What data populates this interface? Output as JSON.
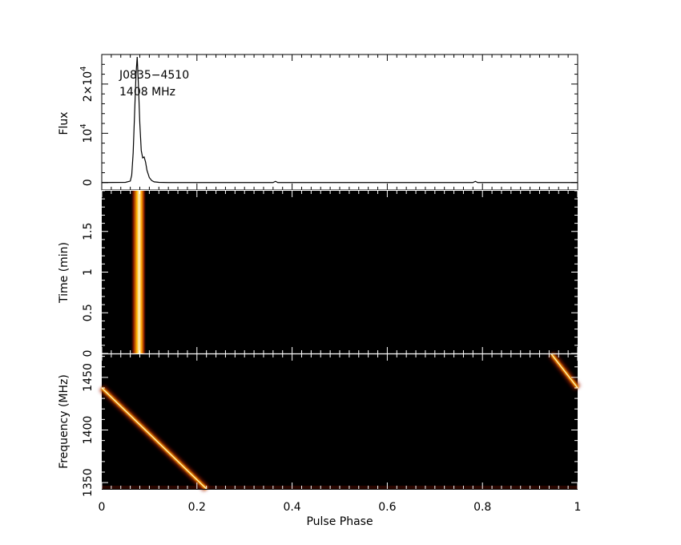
{
  "annotation": {
    "source": "J0835−4510",
    "freq": "1408 MHz"
  },
  "chart_data": [
    {
      "panel": "profile",
      "type": "line",
      "ylabel": "Flux",
      "xlim": [
        0,
        1
      ],
      "ylim": [
        -1500,
        26000
      ],
      "yticks": [
        {
          "value": 0,
          "base": "0",
          "exp": ""
        },
        {
          "value": 10000,
          "base": "10",
          "exp": "4"
        },
        {
          "value": 20000,
          "base": "2×10",
          "exp": "4"
        }
      ],
      "x": [
        0.0,
        0.05,
        0.06,
        0.063,
        0.066,
        0.069,
        0.072,
        0.0745,
        0.077,
        0.08,
        0.083,
        0.086,
        0.089,
        0.092,
        0.095,
        0.1,
        0.105,
        0.11,
        0.12,
        0.14,
        0.36,
        0.365,
        0.37,
        0.78,
        0.785,
        0.79,
        1.0
      ],
      "y": [
        0,
        50,
        300,
        1500,
        6000,
        14000,
        22000,
        25500,
        20000,
        12000,
        6500,
        5000,
        5200,
        4200,
        2500,
        1000,
        400,
        150,
        50,
        0,
        0,
        250,
        0,
        0,
        250,
        0,
        0
      ]
    },
    {
      "panel": "time-phase",
      "type": "heatmap",
      "ylabel": "Time (min)",
      "xlim": [
        0,
        1
      ],
      "ylim": [
        0,
        2
      ],
      "yticks": [
        0,
        0.5,
        1,
        1.5
      ],
      "pulse_phase": 0.077,
      "width": 0.008
    },
    {
      "panel": "frequency-phase",
      "type": "heatmap",
      "xlabel": "Pulse Phase",
      "ylabel": "Frequency (MHz)",
      "xlim": [
        0,
        1
      ],
      "ylim": [
        1344,
        1472
      ],
      "yticks": [
        1350,
        1400,
        1450
      ],
      "xticks": [
        0,
        0.2,
        0.4,
        0.6,
        0.8,
        1
      ],
      "track": [
        {
          "phase": 0.0,
          "freq": 1440
        },
        {
          "phase": 0.22,
          "freq": 1344
        }
      ],
      "track_wrap": [
        {
          "phase": 0.945,
          "freq": 1472
        },
        {
          "phase": 1.0,
          "freq": 1440
        }
      ]
    }
  ]
}
